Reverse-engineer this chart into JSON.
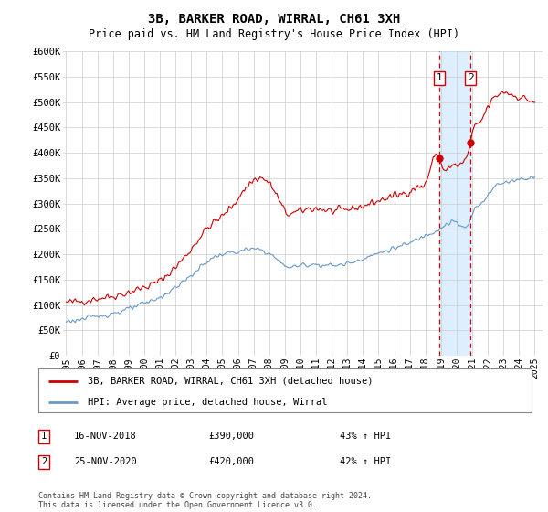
{
  "title": "3B, BARKER ROAD, WIRRAL, CH61 3XH",
  "subtitle": "Price paid vs. HM Land Registry's House Price Index (HPI)",
  "ylim": [
    0,
    600000
  ],
  "yticks": [
    0,
    50000,
    100000,
    150000,
    200000,
    250000,
    300000,
    350000,
    400000,
    450000,
    500000,
    550000,
    600000
  ],
  "ytick_labels": [
    "£0",
    "£50K",
    "£100K",
    "£150K",
    "£200K",
    "£250K",
    "£300K",
    "£350K",
    "£400K",
    "£450K",
    "£500K",
    "£550K",
    "£600K"
  ],
  "xlim_start": 1994.8,
  "xlim_end": 2025.5,
  "xticks": [
    1995,
    1996,
    1997,
    1998,
    1999,
    2000,
    2001,
    2002,
    2003,
    2004,
    2005,
    2006,
    2007,
    2008,
    2009,
    2010,
    2011,
    2012,
    2013,
    2014,
    2015,
    2016,
    2017,
    2018,
    2019,
    2020,
    2021,
    2022,
    2023,
    2024,
    2025
  ],
  "red_line_color": "#cc0000",
  "blue_line_color": "#6699cc",
  "vline1_x": 2018.88,
  "vline2_x": 2020.9,
  "vline_color": "#cc0000",
  "shade_color": "#ddeeff",
  "legend_red": "3B, BARKER ROAD, WIRRAL, CH61 3XH (detached house)",
  "legend_blue": "HPI: Average price, detached house, Wirral",
  "annotation1_date": "16-NOV-2018",
  "annotation1_price": "£390,000",
  "annotation1_hpi": "43% ↑ HPI",
  "annotation2_date": "25-NOV-2020",
  "annotation2_price": "£420,000",
  "annotation2_hpi": "42% ↑ HPI",
  "footer": "Contains HM Land Registry data © Crown copyright and database right 2024.\nThis data is licensed under the Open Government Licence v3.0.",
  "bg_color": "#ffffff",
  "grid_color": "#cccccc"
}
